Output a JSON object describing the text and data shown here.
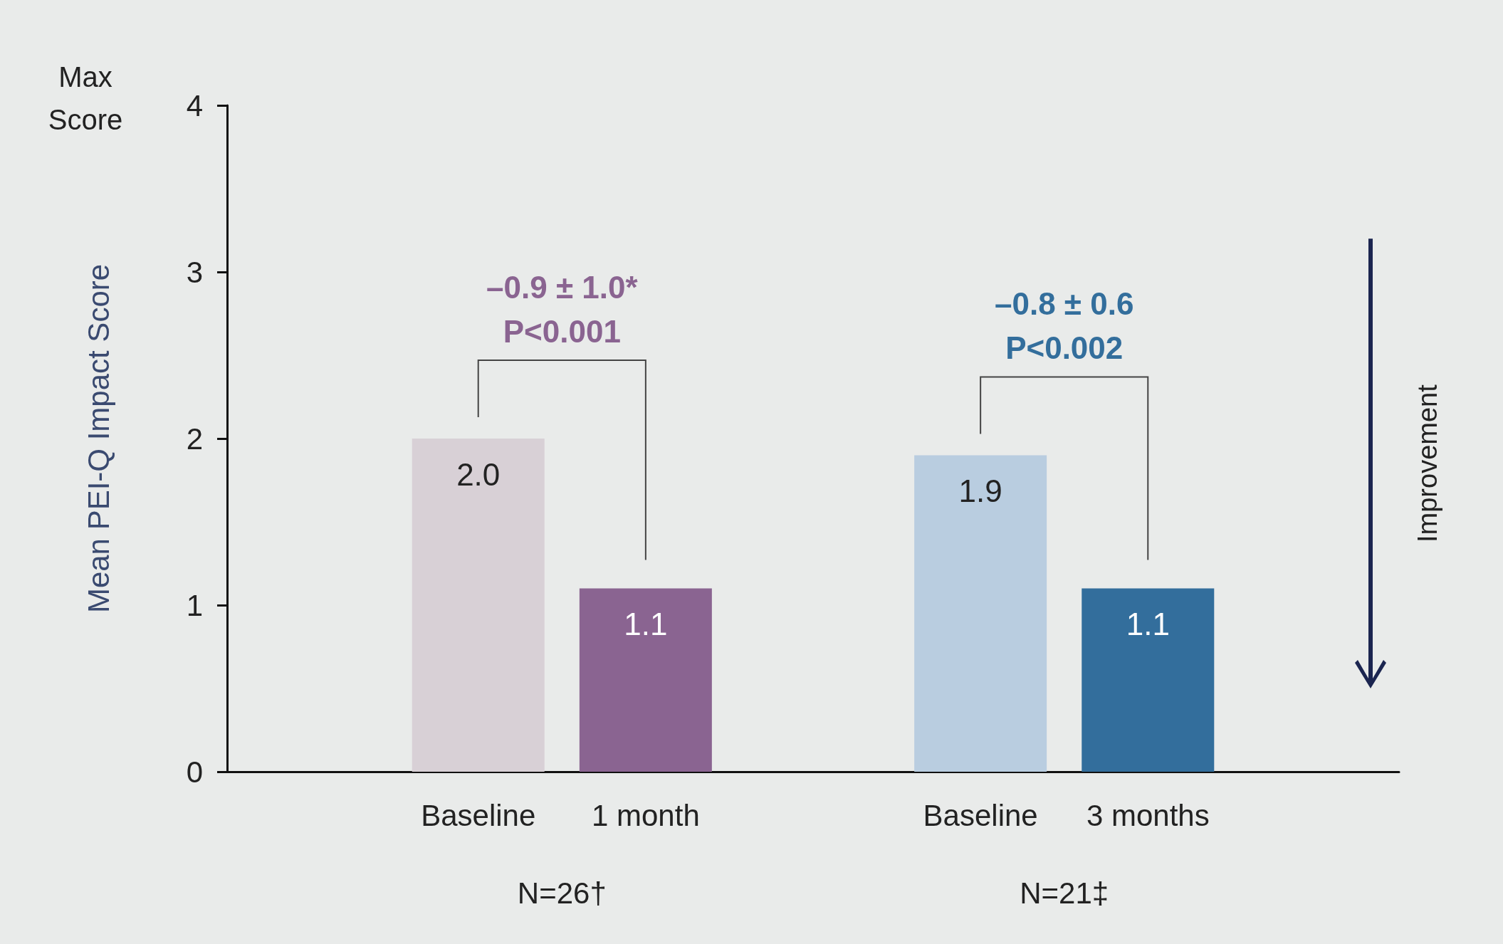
{
  "chart_data": {
    "type": "bar",
    "ylabel": "Mean PEI-Q Impact Score",
    "categories": [
      null,
      "Baseline",
      "1 month",
      null,
      "Baseline",
      "3 months",
      null
    ],
    "values": [
      null,
      2.0,
      1.1,
      null,
      1.9,
      1.1,
      null
    ],
    "colors": [
      null,
      "#d8d0d6",
      "#8a6491",
      null,
      "#b9cde0",
      "#336e9c",
      null
    ],
    "value_labels": [
      null,
      "2.0",
      "1.1",
      null,
      "1.9",
      "1.1",
      null
    ],
    "ylim": [
      0,
      4
    ],
    "yticks": [
      0,
      1,
      2,
      3,
      4
    ],
    "grid": false,
    "annotations": [
      "–0.9 ± 1.0*\nP<0.001",
      "–0.8 ± 0.6\nP<0.002",
      "N=26†",
      "N=21‡",
      "Max\nScore",
      "Improvement"
    ]
  }
}
